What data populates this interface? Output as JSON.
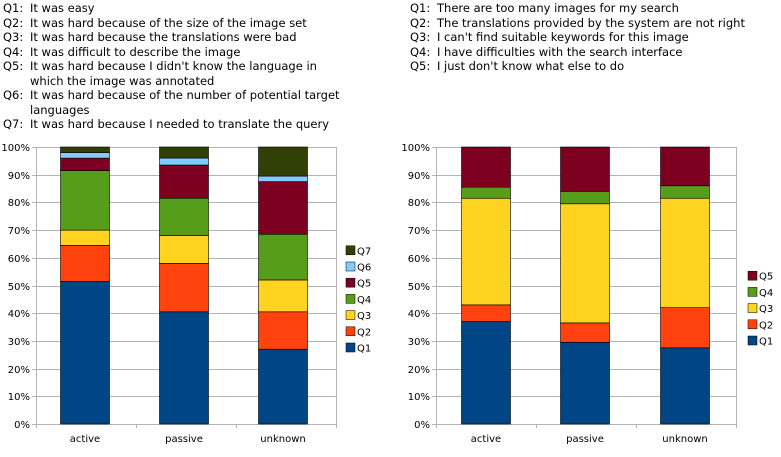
{
  "left_legend": [
    {
      "key": "Q1:",
      "text": "It was easy"
    },
    {
      "key": "Q2:",
      "text": "It was hard because of the size of the image set"
    },
    {
      "key": "Q3:",
      "text": "It was hard because the translations were bad"
    },
    {
      "key": "Q4:",
      "text": "It was difficult to describe the image"
    },
    {
      "key": "Q5:",
      "text": "It was hard because I didn't know the language in which the image was annotated"
    },
    {
      "key": "Q6:",
      "text": "It was hard because of the number of potential target languages"
    },
    {
      "key": "Q7:",
      "text": "It was hard because I needed to translate the query"
    }
  ],
  "right_legend": [
    {
      "key": "Q1:",
      "text": "There are too many images for my search"
    },
    {
      "key": "Q2:",
      "text": "The translations provided by the system are not right"
    },
    {
      "key": "Q3:",
      "text": "I can't find suitable keywords for this image"
    },
    {
      "key": "Q4:",
      "text": "I have difficulties with the search interface"
    },
    {
      "key": "Q5:",
      "text": "I just don't know what else to do"
    }
  ],
  "colors": {
    "Q1": "#004586",
    "Q2": "#ff420e",
    "Q3": "#ffd320",
    "Q4": "#579d1c",
    "Q5": "#7e0021",
    "Q6": "#83caff",
    "Q7": "#314004"
  },
  "chart_data": [
    {
      "type": "bar",
      "stacked": true,
      "categories": [
        "active",
        "passive",
        "unknown"
      ],
      "y_ticks": [
        "0%",
        "10%",
        "20%",
        "30%",
        "40%",
        "50%",
        "60%",
        "70%",
        "80%",
        "90%",
        "100%"
      ],
      "ylim": [
        0,
        100
      ],
      "legend_position": "right",
      "series": [
        {
          "name": "Q1",
          "values": [
            51.5,
            40.5,
            27
          ]
        },
        {
          "name": "Q2",
          "values": [
            13,
            17.5,
            13.5
          ]
        },
        {
          "name": "Q3",
          "values": [
            5.5,
            10,
            11.5
          ]
        },
        {
          "name": "Q4",
          "values": [
            21.5,
            13.5,
            16.5
          ]
        },
        {
          "name": "Q5",
          "values": [
            4.5,
            12,
            19
          ]
        },
        {
          "name": "Q6",
          "values": [
            2,
            2.5,
            2
          ]
        },
        {
          "name": "Q7",
          "values": [
            2,
            4,
            10.5
          ]
        }
      ]
    },
    {
      "type": "bar",
      "stacked": true,
      "categories": [
        "active",
        "passive",
        "unknown"
      ],
      "y_ticks": [
        "0%",
        "10%",
        "20%",
        "30%",
        "40%",
        "50%",
        "60%",
        "70%",
        "80%",
        "90%",
        "100%"
      ],
      "ylim": [
        0,
        100
      ],
      "legend_position": "right",
      "series": [
        {
          "name": "Q1",
          "values": [
            37,
            29.5,
            27.5
          ]
        },
        {
          "name": "Q2",
          "values": [
            6,
            7,
            14.5
          ]
        },
        {
          "name": "Q3",
          "values": [
            38.5,
            43,
            39.5
          ]
        },
        {
          "name": "Q4",
          "values": [
            4,
            4.5,
            4.5
          ]
        },
        {
          "name": "Q5",
          "values": [
            14.5,
            16,
            14
          ]
        }
      ]
    }
  ]
}
